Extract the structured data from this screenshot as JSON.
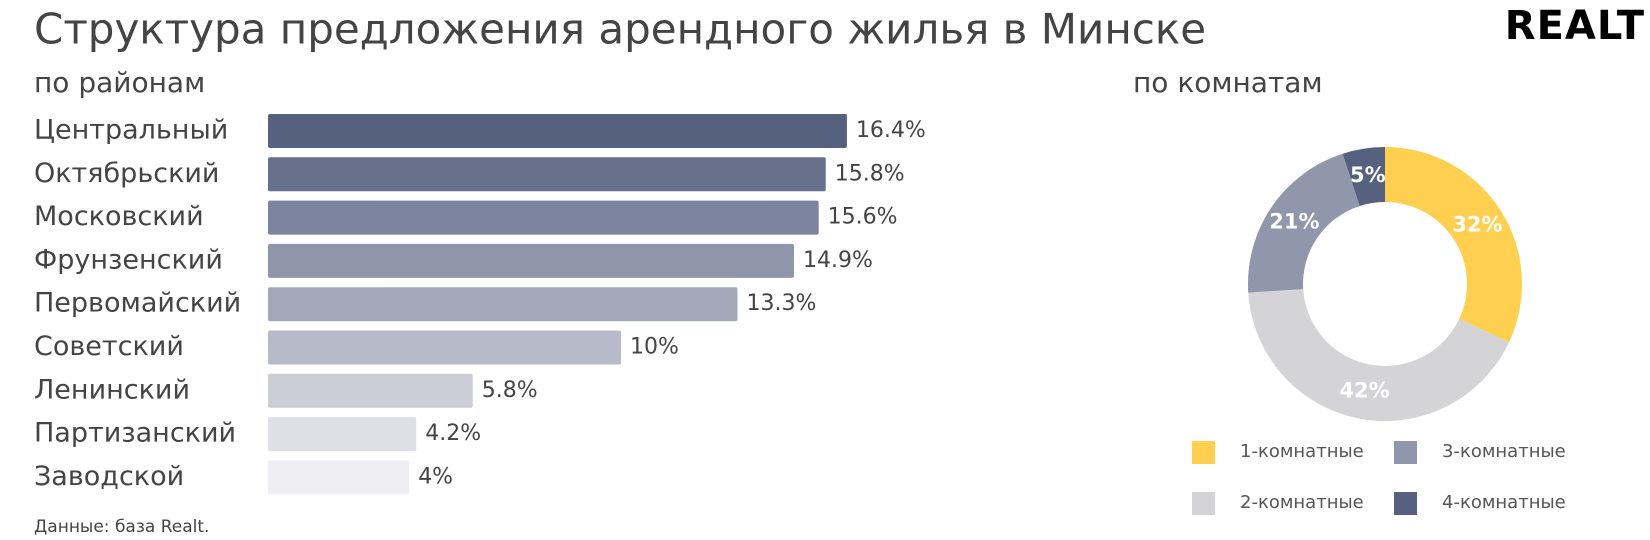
{
  "title": "Структура предложения арендного жилья в Минске",
  "logo": "REALT",
  "source": "Данные: база Realt.",
  "chart_data": [
    {
      "type": "bar",
      "subtitle": "по районам",
      "categories": [
        "Центральный",
        "Октябрьский",
        "Московский",
        "Фрунзенский",
        "Первомайский",
        "Советский",
        "Ленинский",
        "Партизанский",
        "Заводской"
      ],
      "values": [
        16.4,
        15.8,
        15.6,
        14.9,
        13.3,
        10,
        5.8,
        4.2,
        4
      ],
      "value_labels": [
        "16.4%",
        "15.8%",
        "15.6%",
        "14.9%",
        "13.3%",
        "10%",
        "5.8%",
        "4.2%",
        "4%"
      ],
      "colors": [
        "#55617f",
        "#67718c",
        "#7b849c",
        "#8f96ab",
        "#a3a8b9",
        "#b7bac8",
        "#cbcdd7",
        "#dfe0e6",
        "#efeef2"
      ]
    },
    {
      "type": "pie",
      "subtitle": "по комнатам",
      "categories": [
        "1-комнатные",
        "2-комнатные",
        "3-комнатные",
        "4-комнатные"
      ],
      "values": [
        32,
        42,
        21,
        5
      ],
      "value_labels": [
        "32%",
        "42%",
        "21%",
        "5%"
      ],
      "colors": [
        "#ffd050",
        "#d4d3d5",
        "#9096ab",
        "#55617f"
      ]
    }
  ]
}
